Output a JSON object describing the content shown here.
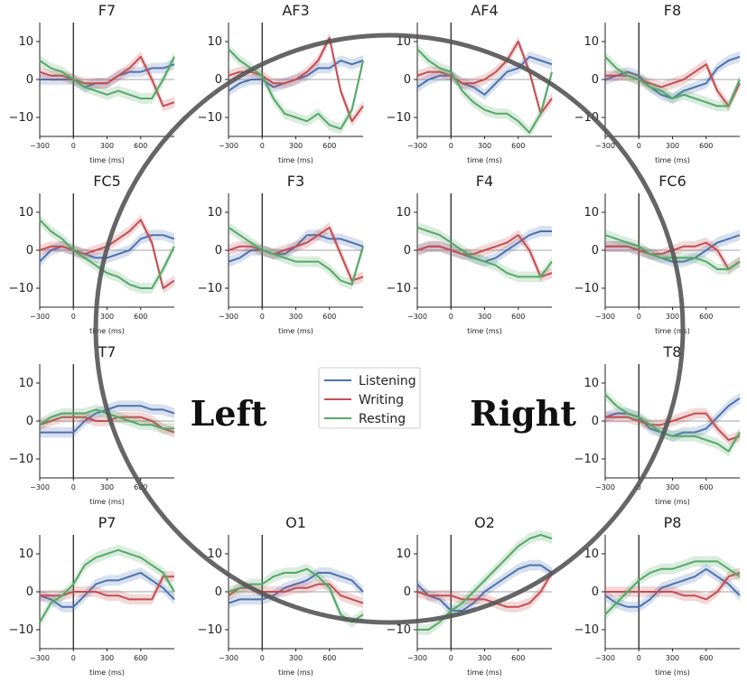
{
  "chart_data": {
    "type": "line",
    "xlabel": "time (ms)",
    "x_ticks": [
      -300,
      0,
      300,
      600
    ],
    "y_ticks": [
      10,
      0,
      -10
    ],
    "xlim": [
      -300,
      900
    ],
    "ylim": [
      -15,
      15
    ],
    "zero_reference_lines": true,
    "stimulus_onset_line_ms": 0,
    "series_meta": [
      {
        "name": "Listening",
        "color": "#4c72b0"
      },
      {
        "name": "Writing",
        "color": "#c44e52"
      },
      {
        "name": "Resting",
        "color": "#55a868"
      }
    ],
    "hemisphere_labels": {
      "left": "Left",
      "right": "Right"
    },
    "legend": {
      "placement": "center"
    },
    "x": [
      -300,
      -200,
      -100,
      0,
      100,
      200,
      300,
      400,
      500,
      600,
      700,
      800,
      900
    ],
    "panels": [
      {
        "title": "F7",
        "series": {
          "Listening": [
            0,
            0,
            0,
            0,
            -2,
            -1,
            -1,
            1,
            2,
            2,
            3,
            3,
            4
          ],
          "Writing": [
            2,
            1,
            1,
            0,
            -1,
            -1,
            -1,
            1,
            3,
            6,
            0,
            -7,
            -6
          ],
          "Resting": [
            5,
            3,
            2,
            0,
            -2,
            -3,
            -4,
            -3,
            -4,
            -5,
            -5,
            0,
            6
          ]
        }
      },
      {
        "title": "AF3",
        "series": {
          "Listening": [
            -3,
            -1,
            0,
            0,
            -2,
            -1,
            0,
            1,
            3,
            3,
            5,
            4,
            5
          ],
          "Writing": [
            1,
            2,
            2,
            1,
            -1,
            -1,
            0,
            2,
            5,
            11,
            -3,
            -11,
            -7
          ],
          "Resting": [
            8,
            5,
            3,
            1,
            -5,
            -9,
            -10,
            -11,
            -9,
            -12,
            -13,
            -8,
            5
          ]
        }
      },
      {
        "title": "AF4",
        "series": {
          "Listening": [
            -2,
            0,
            1,
            1,
            -1,
            -2,
            -4,
            -1,
            2,
            3,
            6,
            5,
            4
          ],
          "Writing": [
            1,
            2,
            2,
            1,
            -1,
            -1,
            0,
            2,
            5,
            10,
            2,
            -9,
            -5
          ],
          "Resting": [
            8,
            5,
            3,
            2,
            -3,
            -6,
            -8,
            -9,
            -9,
            -11,
            -14,
            -9,
            2
          ]
        }
      },
      {
        "title": "F8",
        "series": {
          "Listening": [
            0,
            1,
            2,
            1,
            -2,
            -4,
            -5,
            -3,
            -2,
            -1,
            3,
            5,
            6
          ],
          "Writing": [
            1,
            1,
            1,
            0,
            -1,
            -2,
            -1,
            0,
            2,
            4,
            -3,
            -7,
            -1
          ],
          "Resting": [
            6,
            3,
            1,
            0,
            -2,
            -3,
            -5,
            -4,
            -5,
            -6,
            -7,
            -7,
            0
          ]
        }
      },
      {
        "title": "FC5",
        "series": {
          "Listening": [
            -3,
            0,
            1,
            0,
            -1,
            -2,
            -2,
            -1,
            0,
            3,
            4,
            4,
            3
          ],
          "Writing": [
            0,
            1,
            1,
            0,
            -1,
            0,
            1,
            3,
            5,
            8,
            2,
            -10,
            -8
          ],
          "Resting": [
            8,
            5,
            3,
            0,
            -2,
            -4,
            -6,
            -7,
            -9,
            -10,
            -10,
            -5,
            1
          ]
        }
      },
      {
        "title": "F3",
        "series": {
          "Listening": [
            -3,
            -2,
            0,
            0,
            -1,
            -1,
            1,
            4,
            4,
            3,
            3,
            2,
            1
          ],
          "Writing": [
            0,
            1,
            1,
            0,
            -1,
            0,
            1,
            2,
            4,
            6,
            -1,
            -8,
            -7
          ],
          "Resting": [
            6,
            4,
            2,
            0,
            -1,
            -2,
            -3,
            -3,
            -3,
            -5,
            -8,
            -9,
            1
          ]
        }
      },
      {
        "title": "F4",
        "series": {
          "Listening": [
            0,
            1,
            1,
            0,
            -1,
            -2,
            -3,
            -2,
            0,
            2,
            4,
            5,
            5
          ],
          "Writing": [
            0,
            1,
            1,
            0,
            -1,
            -1,
            0,
            1,
            2,
            4,
            0,
            -7,
            -6
          ],
          "Resting": [
            6,
            5,
            4,
            2,
            0,
            -2,
            -3,
            -4,
            -6,
            -7,
            -7,
            -7,
            -3
          ]
        }
      },
      {
        "title": "FC6",
        "series": {
          "Listening": [
            1,
            1,
            1,
            0,
            -1,
            -2,
            -3,
            -3,
            -2,
            0,
            2,
            3,
            4
          ],
          "Writing": [
            1,
            1,
            1,
            0,
            -1,
            -1,
            0,
            1,
            1,
            2,
            0,
            -5,
            -3
          ],
          "Resting": [
            4,
            3,
            2,
            1,
            -1,
            -2,
            -2,
            -2,
            -2,
            -3,
            -5,
            -5,
            -3
          ]
        }
      },
      {
        "title": "T7",
        "series": {
          "Listening": [
            -3,
            -3,
            -3,
            -3,
            0,
            2,
            3,
            4,
            4,
            4,
            3,
            3,
            2
          ],
          "Writing": [
            -1,
            0,
            1,
            1,
            1,
            0,
            0,
            1,
            1,
            1,
            0,
            -2,
            -3
          ],
          "Resting": [
            -1,
            1,
            2,
            2,
            2,
            3,
            2,
            1,
            0,
            -1,
            -1,
            -2,
            -2
          ]
        }
      },
      {
        "title": "T8",
        "series": {
          "Listening": [
            1,
            2,
            2,
            1,
            -2,
            -3,
            -4,
            -3,
            -3,
            -2,
            1,
            4,
            6
          ],
          "Writing": [
            1,
            1,
            1,
            0,
            -1,
            -1,
            0,
            1,
            2,
            2,
            -2,
            -5,
            -4
          ],
          "Resting": [
            7,
            4,
            2,
            1,
            -1,
            -3,
            -4,
            -4,
            -4,
            -5,
            -6,
            -8,
            -3
          ]
        }
      },
      {
        "title": "P7",
        "series": {
          "Listening": [
            -1,
            -2,
            -4,
            -4,
            -1,
            2,
            3,
            3,
            4,
            5,
            3,
            1,
            -2
          ],
          "Writing": [
            -1,
            -1,
            -1,
            0,
            0,
            0,
            -1,
            -1,
            -2,
            -2,
            -2,
            4,
            4
          ],
          "Resting": [
            -8,
            -3,
            -1,
            2,
            7,
            9,
            10,
            11,
            10,
            9,
            7,
            5,
            0
          ]
        }
      },
      {
        "title": "O1",
        "series": {
          "Listening": [
            -3,
            -2,
            -2,
            -2,
            -1,
            1,
            2,
            3,
            5,
            5,
            4,
            3,
            0
          ],
          "Writing": [
            -1,
            1,
            1,
            0,
            0,
            0,
            1,
            1,
            2,
            2,
            -1,
            -2,
            -3
          ],
          "Resting": [
            0,
            1,
            2,
            2,
            4,
            5,
            5,
            6,
            4,
            1,
            -6,
            -8,
            -6
          ]
        }
      },
      {
        "title": "O2",
        "series": {
          "Listening": [
            2,
            -1,
            -2,
            -5,
            -5,
            -3,
            0,
            2,
            4,
            6,
            7,
            7,
            5
          ],
          "Writing": [
            0,
            -1,
            -1,
            -1,
            -2,
            -2,
            -2,
            -3,
            -4,
            -4,
            -3,
            0,
            5
          ],
          "Resting": [
            -10,
            -10,
            -8,
            -5,
            -3,
            0,
            3,
            6,
            9,
            12,
            14,
            15,
            14
          ]
        }
      },
      {
        "title": "P8",
        "series": {
          "Listening": [
            -1,
            -3,
            -4,
            -4,
            -2,
            1,
            2,
            3,
            4,
            6,
            4,
            2,
            -1
          ],
          "Writing": [
            0,
            0,
            0,
            0,
            0,
            0,
            0,
            -1,
            -1,
            -2,
            0,
            4,
            5
          ],
          "Resting": [
            -6,
            -3,
            0,
            3,
            5,
            6,
            6,
            7,
            8,
            8,
            8,
            6,
            4
          ]
        }
      }
    ]
  }
}
